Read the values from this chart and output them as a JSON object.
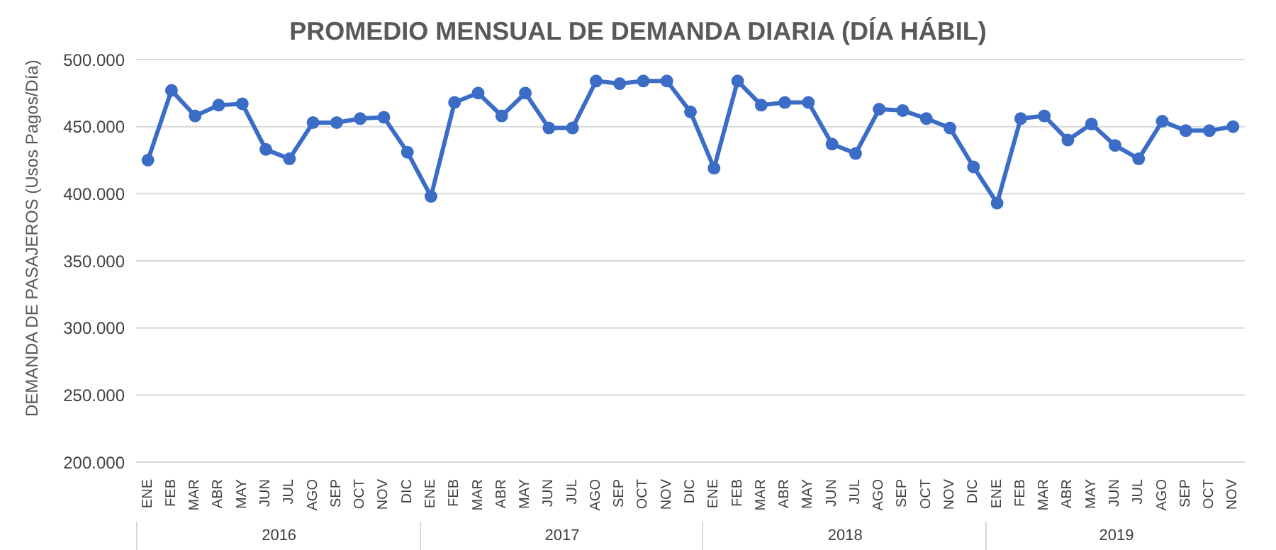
{
  "chart_data": {
    "type": "line",
    "title": "PROMEDIO MENSUAL DE DEMANDA DIARIA (DÍA HÁBIL)",
    "ylabel": "DEMANDA DE PASAJEROS (Usos Pagos/Día)",
    "categories": [
      "ENE",
      "FEB",
      "MAR",
      "ABR",
      "MAY",
      "JUN",
      "JUL",
      "AGO",
      "SEP",
      "OCT",
      "NOV",
      "DIC",
      "ENE",
      "FEB",
      "MAR",
      "ABR",
      "MAY",
      "JUN",
      "JUL",
      "AGO",
      "SEP",
      "OCT",
      "NOV",
      "DIC",
      "ENE",
      "FEB",
      "MAR",
      "ABR",
      "MAY",
      "JUN",
      "JUL",
      "AGO",
      "SEP",
      "OCT",
      "NOV",
      "DIC",
      "ENE",
      "FEB",
      "MAR",
      "ABR",
      "MAY",
      "JUN",
      "JUL",
      "AGO",
      "SEP",
      "OCT",
      "NOV"
    ],
    "series": [
      {
        "color": "#3b6cc6",
        "values": [
          425000,
          477000,
          458000,
          466000,
          467000,
          433000,
          426000,
          453000,
          453000,
          456000,
          457000,
          431000,
          398000,
          468000,
          475000,
          458000,
          475000,
          449000,
          449000,
          484000,
          482000,
          484000,
          484000,
          461000,
          419000,
          484000,
          466000,
          468000,
          468000,
          437000,
          430000,
          463000,
          462000,
          456000,
          449000,
          420000,
          393000,
          456000,
          458000,
          440000,
          452000,
          436000,
          426000,
          454000,
          447000,
          447000,
          450000
        ]
      }
    ],
    "annotations": [
      "2016",
      "2017",
      "2018",
      "2019"
    ],
    "ylim": [
      200000,
      500000
    ],
    "yticks": [
      {
        "value": 200000,
        "label": "200.000"
      },
      {
        "value": 250000,
        "label": "250.000"
      },
      {
        "value": 300000,
        "label": "300.000"
      },
      {
        "value": 350000,
        "label": "350.000"
      },
      {
        "value": 400000,
        "label": "400.000"
      },
      {
        "value": 450000,
        "label": "450.000"
      },
      {
        "value": 500000,
        "label": "500.000"
      }
    ],
    "grid": "y",
    "legend": false,
    "marker": "circle",
    "line_style": "solid"
  }
}
